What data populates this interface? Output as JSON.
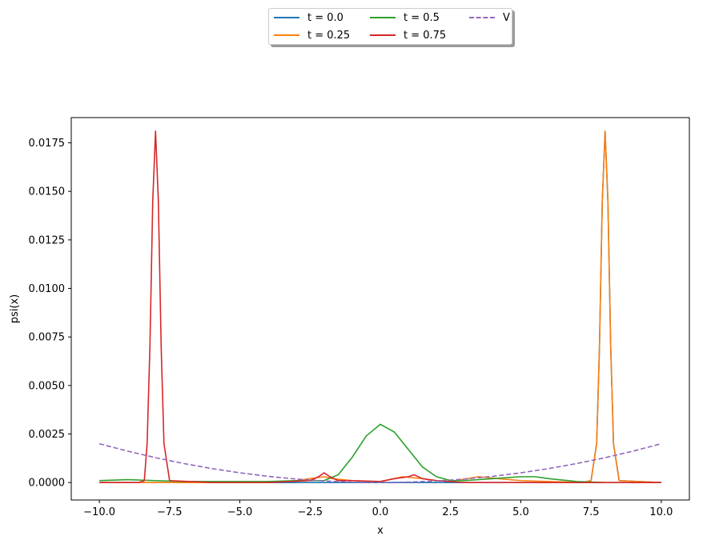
{
  "chart_data": {
    "type": "line",
    "title": "",
    "xlabel": "x",
    "ylabel": "psi(x)",
    "xlim": [
      -11.0,
      11.0
    ],
    "ylim": [
      -0.0009,
      0.0188
    ],
    "grid": false,
    "legend_placement": "upper-center-outside",
    "x_ticks": [
      -10.0,
      -7.5,
      -5.0,
      -2.5,
      0.0,
      2.5,
      5.0,
      7.5,
      10.0
    ],
    "x_tick_labels": [
      "−10.0",
      "−7.5",
      "−5.0",
      "−2.5",
      "0.0",
      "2.5",
      "5.0",
      "7.5",
      "10.0"
    ],
    "y_ticks": [
      0.0,
      0.0025,
      0.005,
      0.0075,
      0.01,
      0.0125,
      0.015,
      0.0175
    ],
    "y_tick_labels": [
      "0.0000",
      "0.0025",
      "0.0050",
      "0.0075",
      "0.0100",
      "0.0125",
      "0.0150",
      "0.0175"
    ],
    "series": [
      {
        "name": "t = 0.0",
        "color": "#1f77b4",
        "style": "solid",
        "x": [
          -10,
          7.2,
          7.5,
          7.7,
          7.8,
          7.9,
          8.0,
          8.1,
          8.2,
          8.3,
          8.5,
          10
        ],
        "y": [
          0,
          0,
          0.0001,
          0.002,
          0.007,
          0.0145,
          0.0181,
          0.0145,
          0.007,
          0.002,
          0.0001,
          0
        ]
      },
      {
        "name": "t = 0.25",
        "color": "#ff7f0e",
        "style": "solid",
        "x": [
          -10,
          -4.0,
          -3.0,
          -2.5,
          -2.0,
          -1.7,
          -1.0,
          0.0,
          0.8,
          1.5,
          2.0,
          2.5,
          3.5,
          4.2,
          5.0,
          6.0,
          7.2,
          7.5,
          7.7,
          7.8,
          7.9,
          8.0,
          8.1,
          8.2,
          8.3,
          8.5,
          10
        ],
        "y": [
          0,
          0,
          0.0001,
          0.0002,
          0.0003,
          0.0002,
          0.0001,
          5e-05,
          0.0003,
          0.0002,
          0.0001,
          5e-05,
          0.0003,
          0.0002,
          0.0001,
          5e-05,
          0,
          0.0001,
          0.002,
          0.007,
          0.0145,
          0.0181,
          0.0145,
          0.007,
          0.002,
          0.0001,
          0
        ]
      },
      {
        "name": "t = 0.5",
        "color": "#2ca02c",
        "style": "solid",
        "x": [
          -10,
          -9.0,
          -8.0,
          -7.0,
          -6.0,
          -5.0,
          -4.0,
          -3.0,
          -2.0,
          -1.5,
          -1.0,
          -0.5,
          0.0,
          0.5,
          1.0,
          1.5,
          2.0,
          2.5,
          3.0,
          4.0,
          5.0,
          5.5,
          6.0,
          7.0,
          8.0,
          9.0,
          10
        ],
        "y": [
          0.0001,
          0.00015,
          0.0001,
          5e-05,
          5e-05,
          5e-05,
          5e-05,
          0.0001,
          0.0001,
          0.0004,
          0.0013,
          0.0024,
          0.003,
          0.0026,
          0.0017,
          0.0008,
          0.0003,
          0.0001,
          0.0001,
          0.0002,
          0.0003,
          0.0003,
          0.0002,
          5e-05,
          0,
          0,
          0
        ]
      },
      {
        "name": "t = 0.75",
        "color": "#d62728",
        "style": "solid",
        "x": [
          -10,
          -8.6,
          -8.4,
          -8.3,
          -8.2,
          -8.1,
          -8.0,
          -7.9,
          -7.8,
          -7.7,
          -7.5,
          -6.0,
          -4.0,
          -2.5,
          -2.2,
          -2.0,
          -1.8,
          -1.5,
          -1.0,
          0.0,
          0.5,
          1.0,
          1.2,
          1.5,
          2.0,
          3.0,
          10
        ],
        "y": [
          0,
          0,
          0.0001,
          0.002,
          0.007,
          0.0145,
          0.0181,
          0.0145,
          0.007,
          0.002,
          0.0001,
          0,
          0,
          0.0001,
          0.0003,
          0.0005,
          0.0003,
          0.0001,
          0.0001,
          5e-05,
          0.0002,
          0.0003,
          0.0004,
          0.0002,
          0.0001,
          0,
          0
        ]
      },
      {
        "name": "V",
        "color": "#9467bd",
        "style": "dashed",
        "x": [
          -10,
          -9,
          -8,
          -7,
          -6,
          -5,
          -4,
          -3,
          -2,
          -1,
          0,
          1,
          2,
          3,
          4,
          5,
          6,
          7,
          8,
          9,
          10
        ],
        "y": [
          0.002,
          0.00162,
          0.00128,
          0.00098,
          0.00072,
          0.0005,
          0.00032,
          0.00018,
          8e-05,
          2e-05,
          0,
          2e-05,
          8e-05,
          0.00018,
          0.00032,
          0.0005,
          0.00072,
          0.00098,
          0.00128,
          0.00162,
          0.002
        ]
      }
    ]
  }
}
